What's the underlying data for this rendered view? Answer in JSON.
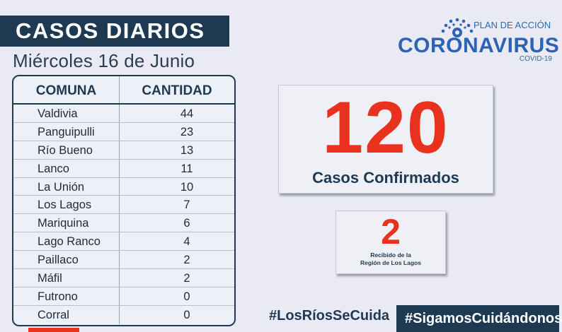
{
  "header": {
    "title": "CASOS DIARIOS",
    "date": "Miércoles 16 de Junio"
  },
  "logo": {
    "plan": "PLAN DE ACCIÓN",
    "main": "CORONAVIRUS",
    "covid": "COVID-19",
    "emblem_icon": "sun-emblem-icon"
  },
  "table": {
    "headers": [
      "COMUNA",
      "CANTIDAD"
    ],
    "rows": [
      {
        "comuna": "Valdivia",
        "cantidad": "44"
      },
      {
        "comuna": "Panguipulli",
        "cantidad": "23"
      },
      {
        "comuna": "Río Bueno",
        "cantidad": "13"
      },
      {
        "comuna": "Lanco",
        "cantidad": "11"
      },
      {
        "comuna": "La Unión",
        "cantidad": "10"
      },
      {
        "comuna": "Los Lagos",
        "cantidad": "7"
      },
      {
        "comuna": "Mariquina",
        "cantidad": "6"
      },
      {
        "comuna": "Lago Ranco",
        "cantidad": "4"
      },
      {
        "comuna": "Paillaco",
        "cantidad": "2"
      },
      {
        "comuna": "Máfil",
        "cantidad": "2"
      },
      {
        "comuna": "Futrono",
        "cantidad": "0"
      },
      {
        "comuna": "Corral",
        "cantidad": "0"
      }
    ]
  },
  "summary": {
    "total": "120",
    "total_label": "Casos Confirmados",
    "received": "2",
    "received_label_1": "Recibido de la",
    "received_label_2": "Región de Los Lagos"
  },
  "footer": {
    "hashtag_1": "#LosRíosSeCuida",
    "hashtag_2": "#SigamosCuidándonos"
  },
  "colors": {
    "navy": "#1e3a52",
    "red": "#e8321e",
    "blue": "#2d63b5",
    "background": "#e9eaf4"
  }
}
